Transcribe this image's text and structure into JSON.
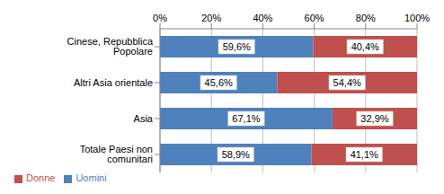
{
  "chart_data": {
    "type": "bar",
    "orientation": "horizontal",
    "stacked": true,
    "categories": [
      "Cinese, Repubblica Popolare",
      "Altri Asia orientale",
      "Asia",
      "Totale Paesi non comunitari"
    ],
    "series": [
      {
        "name": "Uomini",
        "color": "#4f81bd",
        "values": [
          59.6,
          45.6,
          67.1,
          58.9
        ],
        "value_labels": [
          "59,6%",
          "45,6%",
          "67,1%",
          "58,9%"
        ]
      },
      {
        "name": "Donne",
        "color": "#c0504d",
        "values": [
          40.4,
          54.4,
          32.9,
          41.1
        ],
        "value_labels": [
          "40,4%",
          "54,4%",
          "32,9%",
          "41,1%"
        ]
      }
    ],
    "xlim": [
      0,
      100
    ],
    "xticks": [
      {
        "value": 0,
        "label": "0%"
      },
      {
        "value": 20,
        "label": "20%"
      },
      {
        "value": 40,
        "label": "40%"
      },
      {
        "value": 60,
        "label": "60%"
      },
      {
        "value": 80,
        "label": "80%"
      },
      {
        "value": 100,
        "label": "100%"
      }
    ],
    "grid": true,
    "data_labels": true,
    "legend": "bottom-left"
  }
}
